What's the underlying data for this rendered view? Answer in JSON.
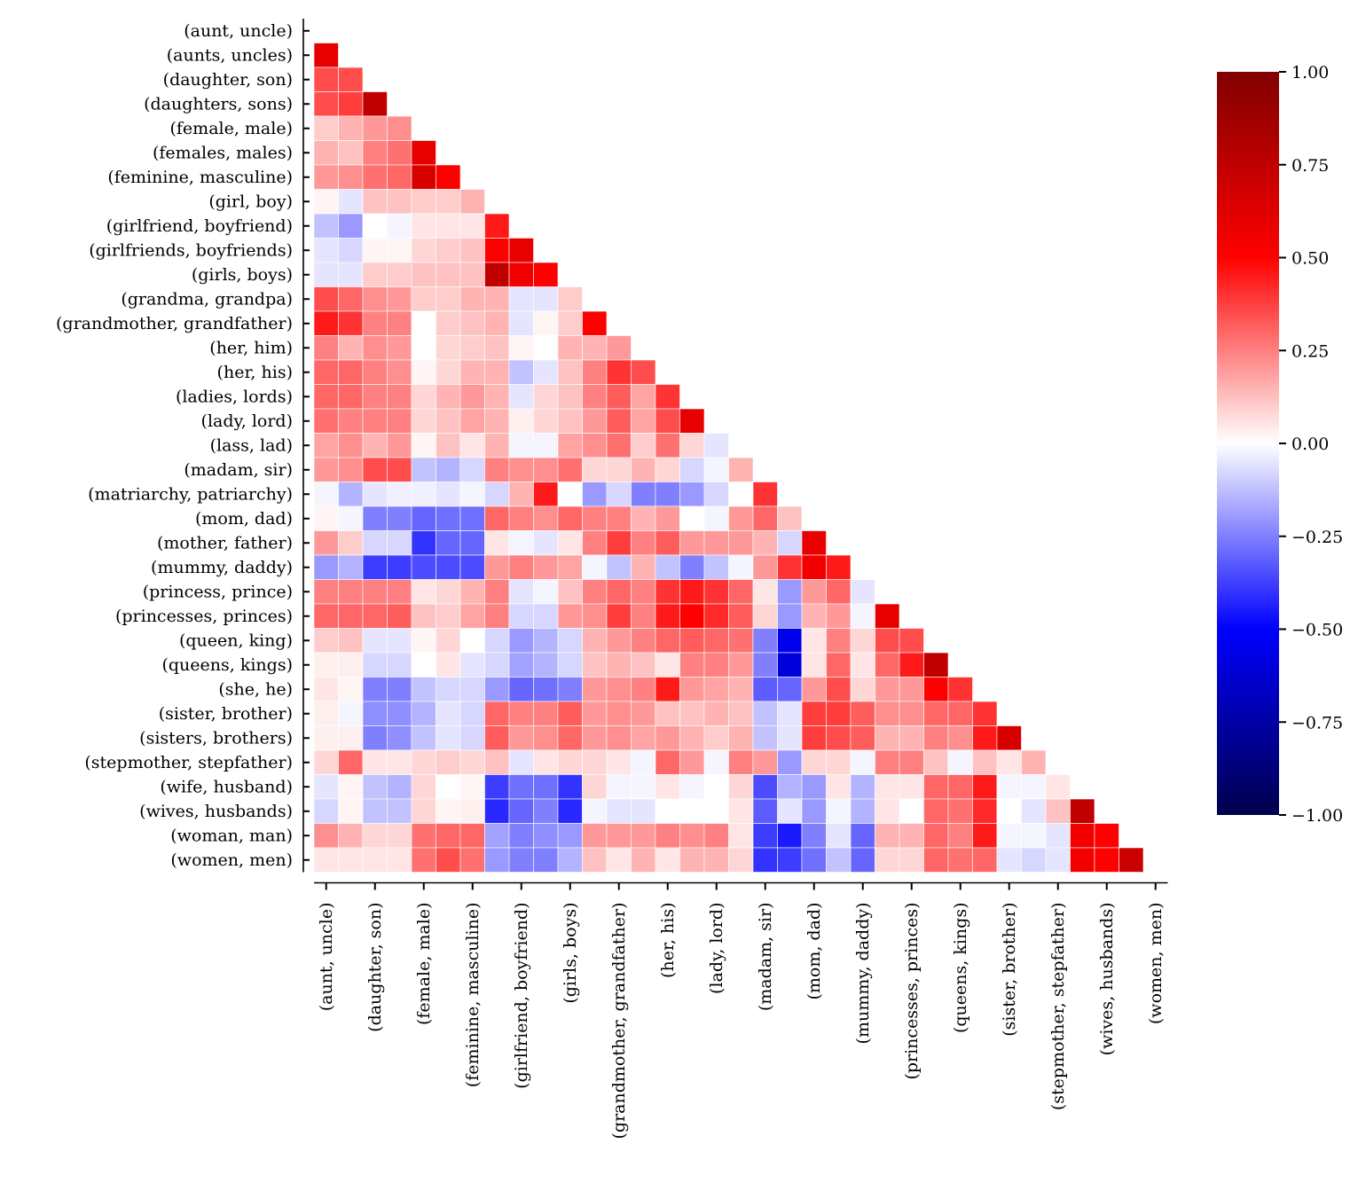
{
  "chart_data": {
    "type": "heatmap",
    "title": "",
    "xlabel": "",
    "ylabel": "",
    "mask": "lower-triangle",
    "colormap": "seismic",
    "vmin": -1.0,
    "vmax": 1.0,
    "colorbar_ticks": [
      1.0,
      0.75,
      0.5,
      0.25,
      0.0,
      -0.25,
      -0.5,
      -0.75,
      -1.0
    ],
    "colorbar_tick_labels": [
      "1.00",
      "0.75",
      "0.50",
      "0.25",
      "0.00",
      "−0.25",
      "−0.50",
      "−0.75",
      "−1.00"
    ],
    "row_labels": [
      "(aunt, uncle)",
      "(aunts, uncles)",
      "(daughter, son)",
      "(daughters, sons)",
      "(female, male)",
      "(females, males)",
      "(feminine, masculine)",
      "(girl, boy)",
      "(girlfriend, boyfriend)",
      "(girlfriends, boyfriends)",
      "(girls, boys)",
      "(grandma, grandpa)",
      "(grandmother, grandfather)",
      "(her, him)",
      "(her, his)",
      "(ladies, lords)",
      "(lady, lord)",
      "(lass, lad)",
      "(madam, sir)",
      "(matriarchy, patriarchy)",
      "(mom, dad)",
      "(mother, father)",
      "(mummy, daddy)",
      "(princess, prince)",
      "(princesses, princes)",
      "(queen, king)",
      "(queens, kings)",
      "(she, he)",
      "(sister, brother)",
      "(sisters, brothers)",
      "(stepmother, stepfather)",
      "(wife, husband)",
      "(wives, husbands)",
      "(woman, man)",
      "(women, men)"
    ],
    "x_tick_labels": [
      "(aunt, uncle)",
      "(daughter, son)",
      "(female, male)",
      "(feminine, masculine)",
      "(girlfriend, boyfriend)",
      "(girls, boys)",
      "(grandmother, grandfather)",
      "(her, his)",
      "(lady, lord)",
      "(madam, sir)",
      "(mom, dad)",
      "(mummy, daddy)",
      "(princesses, princes)",
      "(queens, kings)",
      "(sister, brother)",
      "(stepmother, stepfather)",
      "(wives, husbands)",
      "(women, men)"
    ],
    "x_tick_columns": [
      0,
      2,
      4,
      6,
      8,
      10,
      12,
      14,
      16,
      18,
      20,
      22,
      24,
      26,
      28,
      30,
      32,
      34
    ],
    "values": [
      [],
      [
        0.6
      ],
      [
        0.35,
        0.35
      ],
      [
        0.35,
        0.38,
        0.75
      ],
      [
        0.1,
        0.15,
        0.2,
        0.22
      ],
      [
        0.15,
        0.12,
        0.25,
        0.28,
        0.6
      ],
      [
        0.2,
        0.22,
        0.28,
        0.3,
        0.65,
        0.5
      ],
      [
        0.02,
        -0.05,
        0.12,
        0.12,
        0.1,
        0.1,
        0.15
      ],
      [
        -0.12,
        -0.2,
        0.0,
        -0.02,
        0.05,
        0.05,
        0.05,
        0.45
      ],
      [
        -0.05,
        -0.08,
        0.02,
        0.02,
        0.08,
        0.1,
        0.12,
        0.5,
        0.6
      ],
      [
        -0.05,
        -0.05,
        0.1,
        0.1,
        0.12,
        0.12,
        0.12,
        0.75,
        0.55,
        0.5
      ],
      [
        0.35,
        0.3,
        0.22,
        0.2,
        0.1,
        0.1,
        0.15,
        0.15,
        -0.05,
        -0.05,
        0.1
      ],
      [
        0.45,
        0.4,
        0.25,
        0.25,
        0.0,
        0.1,
        0.12,
        0.15,
        -0.05,
        0.02,
        0.1,
        0.5
      ],
      [
        0.25,
        0.15,
        0.22,
        0.2,
        0.0,
        0.08,
        0.1,
        0.12,
        0.02,
        0.0,
        0.15,
        0.15,
        0.2
      ],
      [
        0.3,
        0.3,
        0.25,
        0.22,
        0.02,
        0.08,
        0.15,
        0.15,
        -0.12,
        -0.05,
        0.12,
        0.25,
        0.4,
        0.35
      ],
      [
        0.3,
        0.3,
        0.25,
        0.25,
        0.08,
        0.15,
        0.2,
        0.15,
        -0.05,
        0.08,
        0.12,
        0.25,
        0.32,
        0.18,
        0.4
      ],
      [
        0.28,
        0.25,
        0.25,
        0.25,
        0.08,
        0.12,
        0.18,
        0.15,
        0.03,
        0.08,
        0.12,
        0.2,
        0.32,
        0.18,
        0.35,
        0.6
      ],
      [
        0.18,
        0.22,
        0.15,
        0.2,
        0.02,
        0.12,
        0.05,
        0.15,
        -0.02,
        -0.02,
        0.18,
        0.22,
        0.28,
        0.1,
        0.28,
        0.08,
        -0.05
      ],
      [
        0.2,
        0.22,
        0.35,
        0.35,
        -0.12,
        -0.15,
        -0.08,
        0.25,
        0.22,
        0.22,
        0.28,
        0.08,
        0.08,
        0.15,
        0.08,
        -0.08,
        -0.02,
        0.15
      ],
      [
        -0.02,
        -0.15,
        -0.05,
        -0.03,
        -0.03,
        -0.05,
        -0.02,
        -0.08,
        0.15,
        0.45,
        0.0,
        -0.2,
        -0.08,
        -0.25,
        -0.25,
        -0.2,
        -0.08,
        0.0,
        0.4
      ],
      [
        0.02,
        -0.02,
        -0.25,
        -0.25,
        -0.3,
        -0.28,
        -0.28,
        0.3,
        0.25,
        0.22,
        0.3,
        0.25,
        0.25,
        0.15,
        0.2,
        0.0,
        -0.02,
        0.2,
        0.3,
        0.12
      ],
      [
        0.2,
        0.1,
        -0.08,
        -0.08,
        -0.4,
        -0.3,
        -0.3,
        0.05,
        -0.02,
        -0.05,
        0.05,
        0.25,
        0.38,
        0.25,
        0.32,
        0.2,
        0.2,
        0.2,
        0.15,
        -0.08,
        0.58
      ],
      [
        -0.2,
        -0.15,
        -0.38,
        -0.38,
        -0.35,
        -0.35,
        -0.35,
        0.2,
        0.25,
        0.2,
        0.18,
        -0.02,
        -0.12,
        0.15,
        -0.12,
        -0.25,
        -0.12,
        -0.02,
        0.2,
        0.4,
        0.55,
        0.45
      ],
      [
        0.25,
        0.25,
        0.25,
        0.25,
        0.05,
        0.08,
        0.15,
        0.25,
        -0.05,
        -0.02,
        0.12,
        0.25,
        0.3,
        0.25,
        0.4,
        0.45,
        0.4,
        0.3,
        0.05,
        -0.2,
        0.2,
        0.3,
        -0.05
      ],
      [
        0.3,
        0.3,
        0.3,
        0.32,
        0.12,
        0.1,
        0.18,
        0.25,
        -0.08,
        -0.08,
        0.2,
        0.22,
        0.38,
        0.25,
        0.45,
        0.5,
        0.42,
        0.32,
        0.08,
        -0.2,
        0.15,
        0.2,
        -0.02,
        0.6
      ],
      [
        0.1,
        0.12,
        -0.05,
        -0.05,
        0.02,
        0.08,
        0.0,
        -0.08,
        -0.2,
        -0.15,
        -0.08,
        0.15,
        0.2,
        0.25,
        0.3,
        0.32,
        0.3,
        0.28,
        -0.25,
        -0.55,
        0.05,
        0.25,
        0.08,
        0.35,
        0.35
      ],
      [
        0.03,
        0.03,
        -0.08,
        -0.08,
        0.0,
        0.05,
        -0.05,
        -0.08,
        -0.18,
        -0.15,
        -0.08,
        0.12,
        0.15,
        0.12,
        0.05,
        0.25,
        0.25,
        0.2,
        -0.25,
        -0.6,
        0.05,
        0.3,
        0.05,
        0.3,
        0.45,
        0.75
      ],
      [
        0.05,
        0.02,
        -0.25,
        -0.25,
        -0.12,
        -0.08,
        -0.08,
        -0.2,
        -0.3,
        -0.28,
        -0.25,
        0.2,
        0.22,
        0.25,
        0.45,
        0.2,
        0.18,
        0.15,
        -0.32,
        -0.3,
        0.2,
        0.35,
        0.08,
        0.2,
        0.2,
        0.5,
        0.4
      ],
      [
        0.03,
        -0.02,
        -0.22,
        -0.22,
        -0.15,
        -0.05,
        -0.08,
        0.3,
        0.25,
        0.25,
        0.32,
        0.2,
        0.22,
        0.2,
        0.12,
        0.12,
        0.15,
        0.12,
        -0.12,
        -0.05,
        0.38,
        0.38,
        0.32,
        0.22,
        0.22,
        0.3,
        0.3,
        0.4
      ],
      [
        0.03,
        0.03,
        -0.25,
        -0.22,
        -0.12,
        -0.05,
        -0.08,
        0.32,
        0.2,
        0.22,
        0.3,
        0.2,
        0.22,
        0.18,
        0.2,
        0.15,
        0.1,
        0.15,
        -0.12,
        -0.05,
        0.38,
        0.35,
        0.32,
        0.15,
        0.15,
        0.25,
        0.22,
        0.45,
        0.65
      ],
      [
        0.08,
        0.3,
        0.05,
        0.05,
        0.08,
        0.1,
        0.08,
        0.12,
        -0.05,
        0.05,
        0.08,
        0.08,
        0.05,
        -0.02,
        0.3,
        0.2,
        -0.02,
        0.25,
        0.2,
        -0.2,
        0.08,
        0.08,
        -0.02,
        0.25,
        0.25,
        0.12,
        -0.02,
        0.12,
        0.05,
        0.15
      ],
      [
        -0.05,
        0.02,
        -0.12,
        -0.15,
        0.08,
        0.0,
        0.02,
        -0.38,
        -0.28,
        -0.28,
        -0.4,
        0.08,
        -0.02,
        -0.02,
        0.05,
        -0.02,
        0.0,
        0.08,
        -0.35,
        -0.15,
        -0.2,
        0.05,
        -0.15,
        0.05,
        0.05,
        0.3,
        0.3,
        0.45,
        -0.02,
        -0.02,
        0.05
      ],
      [
        -0.08,
        0.02,
        -0.12,
        -0.12,
        0.08,
        0.02,
        0.03,
        -0.42,
        -0.3,
        -0.25,
        -0.42,
        -0.02,
        -0.05,
        -0.05,
        0.0,
        0.0,
        0.0,
        0.05,
        -0.32,
        -0.05,
        -0.2,
        -0.02,
        -0.15,
        0.05,
        0.0,
        0.3,
        0.28,
        0.42,
        0.0,
        -0.05,
        0.12,
        0.75
      ],
      [
        0.22,
        0.15,
        0.08,
        0.08,
        0.28,
        0.3,
        0.3,
        -0.18,
        -0.25,
        -0.22,
        -0.2,
        0.2,
        0.2,
        0.2,
        0.25,
        0.22,
        0.25,
        0.05,
        -0.38,
        -0.45,
        -0.25,
        -0.05,
        -0.3,
        0.15,
        0.15,
        0.3,
        0.25,
        0.45,
        -0.02,
        -0.02,
        -0.05,
        0.55,
        0.5
      ],
      [
        0.05,
        0.05,
        0.05,
        0.05,
        0.28,
        0.35,
        0.28,
        -0.2,
        -0.25,
        -0.25,
        -0.15,
        0.12,
        0.05,
        0.15,
        0.05,
        0.15,
        0.15,
        0.08,
        -0.4,
        -0.38,
        -0.28,
        -0.12,
        -0.3,
        0.08,
        0.08,
        0.3,
        0.28,
        0.3,
        -0.05,
        -0.08,
        -0.05,
        0.55,
        0.5,
        0.7
      ]
    ]
  }
}
